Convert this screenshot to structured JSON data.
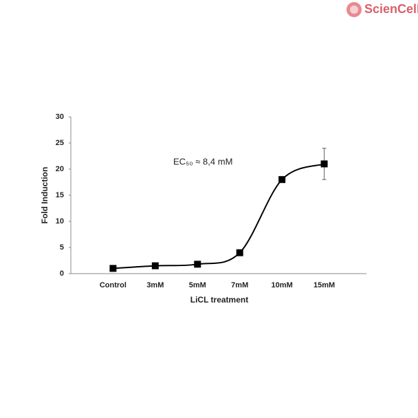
{
  "logo": "ScienCell",
  "chart_data": {
    "type": "line",
    "categories": [
      "Control",
      "3mM",
      "5mM",
      "7mM",
      "10mM",
      "15mM"
    ],
    "values": [
      1,
      1.5,
      1.8,
      4,
      18,
      21
    ],
    "errors": [
      null,
      null,
      null,
      null,
      null,
      3
    ],
    "color": "#000000",
    "x_label": "LiCL treatment",
    "y_label": "Fold Induction",
    "annotation": "EC₅₀ ≈ 8,4 mM",
    "ylim": [
      0,
      30
    ],
    "yticks": [
      0,
      5,
      10,
      15,
      20,
      25,
      30
    ],
    "smooth": true
  }
}
